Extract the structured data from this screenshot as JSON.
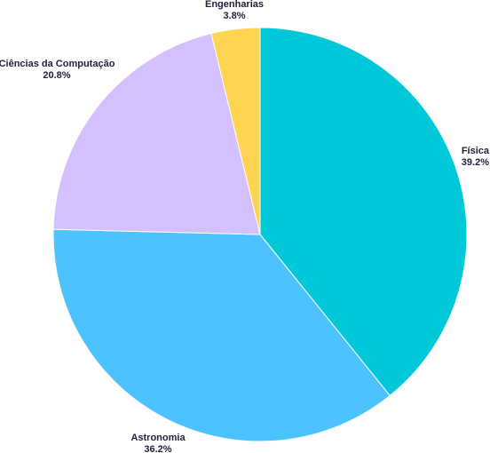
{
  "chart_data": {
    "type": "pie",
    "title": "",
    "slices": [
      {
        "label": "Física",
        "value": 39.2,
        "display": "39.2%",
        "color": "#00c8d9"
      },
      {
        "label": "Astronomia",
        "value": 36.2,
        "display": "36.2%",
        "color": "#4cc2ff"
      },
      {
        "label": "Ciências da Computação",
        "value": 20.8,
        "display": "20.8%",
        "color": "#d4bfff"
      },
      {
        "label": "Engenharias",
        "value": 3.8,
        "display": "3.8%",
        "color": "#ffd450"
      }
    ],
    "start_angle_deg": 0,
    "direction": "clockwise"
  }
}
